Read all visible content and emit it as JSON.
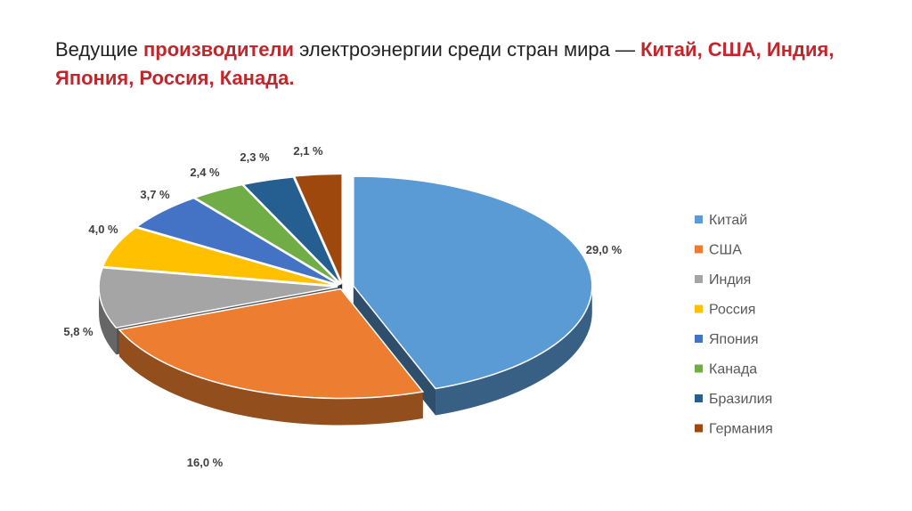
{
  "title": {
    "part1": "Ведущие ",
    "part2": "производители",
    "part3": " электроэнергии среди стран мира — ",
    "part4": "Китай, США, Индия, Япония, Россия, Канада."
  },
  "colors": {
    "title_highlight": "#c0272d"
  },
  "chart_data": {
    "type": "pie",
    "style": "3d-exploded",
    "legend_position": "right",
    "categories": [
      "Китай",
      "США",
      "Индия",
      "Россия",
      "Япония",
      "Канада",
      "Бразилия",
      "Германия"
    ],
    "values": [
      29.0,
      16.0,
      5.8,
      4.0,
      3.7,
      2.4,
      2.3,
      2.1
    ],
    "labels": [
      "29,0 %",
      "16,0 %",
      "5,8 %",
      "4,0 %",
      "3,7 %",
      "2,4 %",
      "2,3 %",
      "2,1 %"
    ],
    "colors": [
      "#5b9bd5",
      "#ed7d31",
      "#a5a5a5",
      "#ffc000",
      "#4472c4",
      "#70ad47",
      "#255e91",
      "#9e480e"
    ]
  }
}
